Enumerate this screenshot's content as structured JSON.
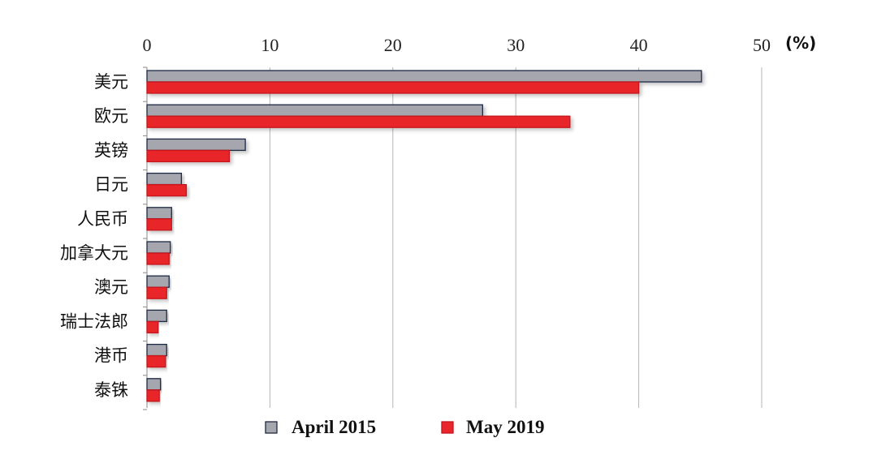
{
  "chart_data": {
    "type": "bar",
    "orientation": "horizontal",
    "unit_label": "(%)",
    "xlim": [
      0,
      50
    ],
    "xticks": [
      0,
      10,
      20,
      30,
      40,
      50
    ],
    "grid": true,
    "legend_position": "bottom",
    "categories": [
      "美元",
      "欧元",
      "英镑",
      "日元",
      "人民币",
      "加拿大元",
      "澳元",
      "瑞士法郎",
      "港币",
      "泰铢"
    ],
    "series": [
      {
        "name": "April 2015",
        "color": "#a6a6ae",
        "edge_color": "#1f2a44",
        "values": [
          45.1,
          27.3,
          8.0,
          2.8,
          2.0,
          1.9,
          1.8,
          1.6,
          1.6,
          1.1
        ]
      },
      {
        "name": "May 2019",
        "color": "#e8262b",
        "edge_color": "#c4161b",
        "values": [
          40.0,
          34.4,
          6.7,
          3.2,
          2.0,
          1.8,
          1.6,
          0.9,
          1.5,
          1.0
        ]
      }
    ]
  }
}
